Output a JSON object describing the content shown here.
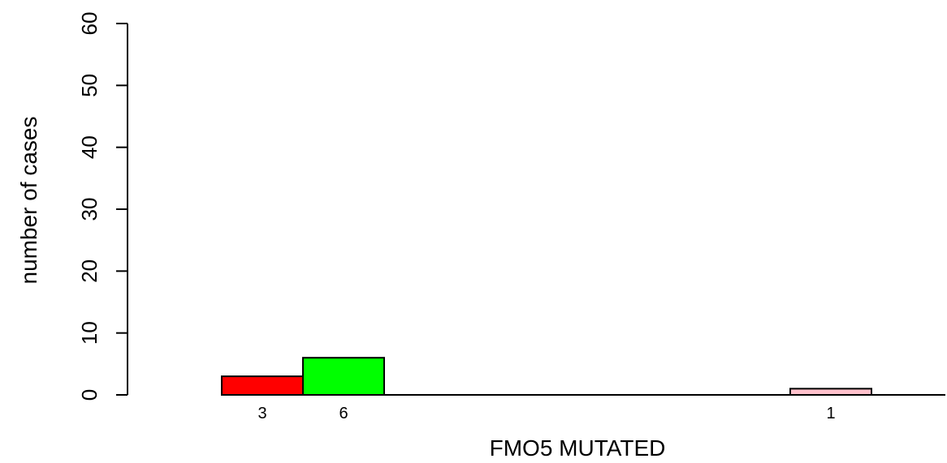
{
  "chart_data": {
    "type": "bar",
    "xlabel": "FMO5 MUTATED",
    "ylabel": "number of cases",
    "ylim": [
      0,
      60
    ],
    "yticks": [
      0,
      10,
      20,
      30,
      40,
      50,
      60
    ],
    "bar_slots": 9,
    "grid": false,
    "legend": "none",
    "bars": [
      {
        "slot": 0,
        "value": 3,
        "label": "3",
        "color": "#ff0000"
      },
      {
        "slot": 1,
        "value": 6,
        "label": "6",
        "color": "#00ff00"
      },
      {
        "slot": 7,
        "value": 1,
        "label": "1",
        "color": "#ffc0cb"
      }
    ]
  }
}
